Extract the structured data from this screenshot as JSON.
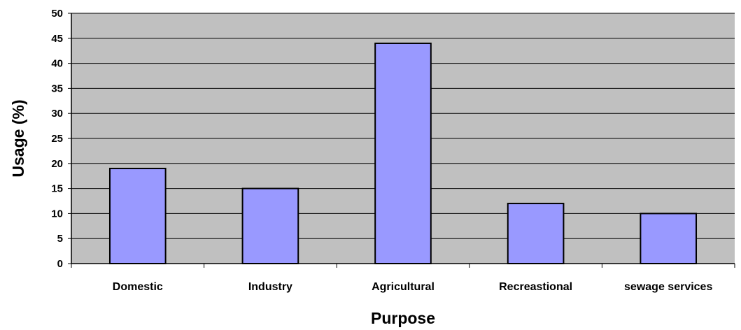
{
  "chart_data": {
    "type": "bar",
    "categories": [
      "Domestic",
      "Industry",
      "Agricultural",
      "Recreastional",
      "sewage services"
    ],
    "values": [
      19,
      15,
      44,
      12,
      10
    ],
    "xlabel": "Purpose",
    "ylabel": "Usage (%)",
    "ylim": [
      0,
      50
    ],
    "yticks": [
      0,
      5,
      10,
      15,
      20,
      25,
      30,
      35,
      40,
      45,
      50
    ],
    "grid": true,
    "legend": "none",
    "colors": {
      "plot_background": "#c0c0c0",
      "bar_fill": "#9999ff",
      "bar_stroke": "#000000",
      "gridline": "#000000"
    }
  }
}
